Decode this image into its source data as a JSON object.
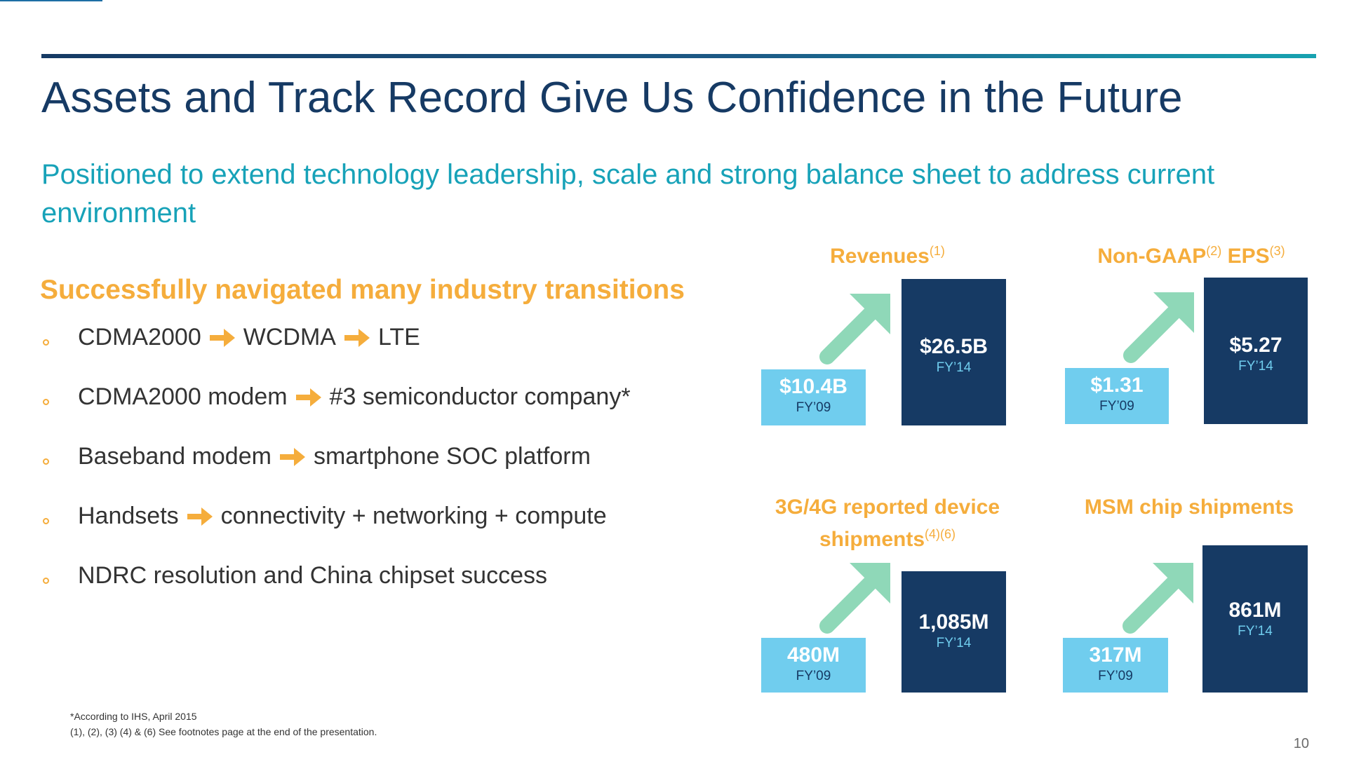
{
  "title": "Assets and Track Record Give Us Confidence in the Future",
  "subtitle": "Positioned to extend technology leadership, scale and strong balance sheet to address current environment",
  "section_heading": "Successfully navigated many industry transitions",
  "bullets": [
    {
      "parts": [
        "CDMA2000",
        "WCDMA",
        "LTE"
      ]
    },
    {
      "parts": [
        "CDMA2000 modem",
        "#3 semiconductor company*"
      ]
    },
    {
      "parts": [
        "Baseband modem",
        "smartphone SOC platform"
      ]
    },
    {
      "parts": [
        "Handsets",
        "connectivity + networking + compute"
      ]
    },
    {
      "parts": [
        "NDRC resolution and China chipset success"
      ]
    }
  ],
  "panels": [
    {
      "title": "Revenues",
      "title_sup": "(1)",
      "old_value": "$10.4B",
      "old_year": "FY’09",
      "new_value": "$26.5B",
      "new_year": "FY’14"
    },
    {
      "title_a": "Non-GAAP",
      "sup_a": "(2)",
      "title_b": " EPS",
      "sup_b": "(3)",
      "old_value": "$1.31",
      "old_year": "FY’09",
      "new_value": "$5.27",
      "new_year": "FY’14"
    },
    {
      "title_line1": "3G/4G reported device",
      "title_line2": "shipments",
      "title_sup": "(4)(6)",
      "old_value": "480M",
      "old_year": "FY’09",
      "new_value": "1,085M",
      "new_year": "FY’14"
    },
    {
      "title": "MSM chip shipments",
      "old_value": "317M",
      "old_year": "FY’09",
      "new_value": "861M",
      "new_year": "FY’14"
    }
  ],
  "footnotes": [
    "*According to IHS, April 2015",
    "(1), (2), (3) (4) & (6) See footnotes page at the end of the presentation."
  ],
  "page_number": "10",
  "colors": {
    "navy": "#163a64",
    "teal": "#17a2b8",
    "orange": "#f5ad3c",
    "light_blue": "#70cdee",
    "mint_arrow": "#8fd8b8"
  }
}
